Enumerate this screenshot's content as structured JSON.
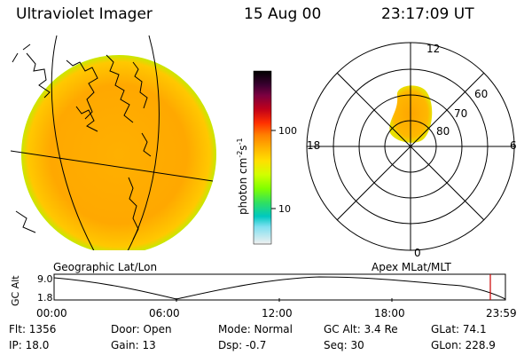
{
  "header": {
    "instrument": "Ultraviolet Imager",
    "date": "15 Aug 00",
    "time": "23:17:09 UT"
  },
  "colorbar": {
    "unit_label": "photon cm",
    "unit_exp1": "-2",
    "unit_s": "s",
    "unit_exp2": "-1",
    "ticks": [
      "100",
      "10"
    ],
    "colors": [
      "#000000",
      "#3a0030",
      "#7a0040",
      "#b0001a",
      "#e00000",
      "#ff4000",
      "#ff7a00",
      "#ffa500",
      "#ffd000",
      "#ffff00",
      "#c8ff00",
      "#7aff00",
      "#30e060",
      "#00c8a0",
      "#00c8e0",
      "#80e0f0",
      "#d0e8f0",
      "#f0f0f0"
    ]
  },
  "labels": {
    "geo": "Geographic Lat/Lon",
    "apex": "Apex MLat/MLT",
    "alt_axis": "GC Alt",
    "alt_max": "9.0",
    "alt_min": "1.8"
  },
  "polar": {
    "mlt": [
      "12",
      "18",
      "6",
      "0"
    ],
    "mlat": [
      "60",
      "70",
      "80"
    ]
  },
  "timeline": {
    "ticks": [
      "00:00",
      "06:00",
      "12:00",
      "18:00",
      "23:59"
    ]
  },
  "status": {
    "flt": "Flt: 1356",
    "ip": "IP: 18.0",
    "door": "Door: Open",
    "gain": "Gain: 13",
    "mode": "Mode: Normal",
    "dsp": "Dsp:   -0.7",
    "gc_alt": "GC Alt: 3.4 Re",
    "seq": "Seq: 30",
    "glat": "GLat:  74.1",
    "glon": "GLon: 228.9"
  }
}
